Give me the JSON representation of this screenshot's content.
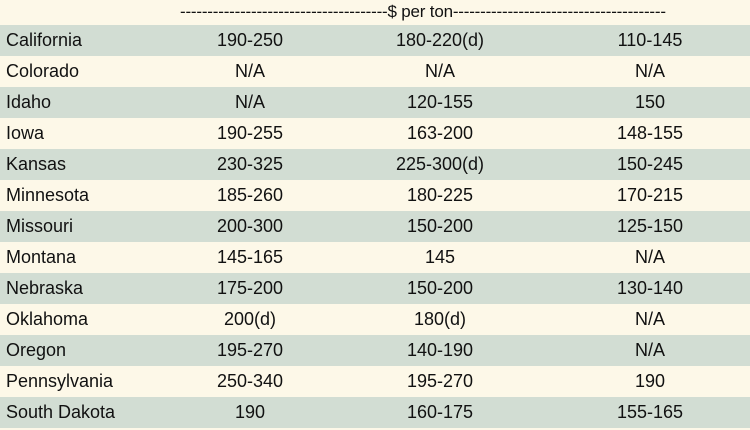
{
  "header": {
    "caption": "--------------------------------------$ per ton---------------------------------------"
  },
  "rows": [
    {
      "state": "California",
      "v1": "190-250",
      "v2": "180-220(d)",
      "v3": "110-145"
    },
    {
      "state": "Colorado",
      "v1": "N/A",
      "v2": "N/A",
      "v3": "N/A"
    },
    {
      "state": "Idaho",
      "v1": "N/A",
      "v2": "120-155",
      "v3": "150"
    },
    {
      "state": "Iowa",
      "v1": "190-255",
      "v2": "163-200",
      "v3": "148-155"
    },
    {
      "state": "Kansas",
      "v1": "230-325",
      "v2": "225-300(d)",
      "v3": "150-245"
    },
    {
      "state": "Minnesota",
      "v1": "185-260",
      "v2": "180-225",
      "v3": "170-215"
    },
    {
      "state": "Missouri",
      "v1": "200-300",
      "v2": "150-200",
      "v3": "125-150"
    },
    {
      "state": "Montana",
      "v1": "145-165",
      "v2": "145",
      "v3": "N/A"
    },
    {
      "state": "Nebraska",
      "v1": "175-200",
      "v2": "150-200",
      "v3": "130-140"
    },
    {
      "state": "Oklahoma",
      "v1": "200(d)",
      "v2": "180(d)",
      "v3": "N/A"
    },
    {
      "state": "Oregon",
      "v1": "195-270",
      "v2": "140-190",
      "v3": "N/A"
    },
    {
      "state": "Pennsylvania",
      "v1": "250-340",
      "v2": "195-270",
      "v3": "190"
    },
    {
      "state": "South Dakota",
      "v1": "190",
      "v2": "160-175",
      "v3": "155-165"
    }
  ],
  "colors": {
    "shaded_row": "#d2ddd3",
    "light_row": "#fdf8e8",
    "text": "#111111"
  }
}
